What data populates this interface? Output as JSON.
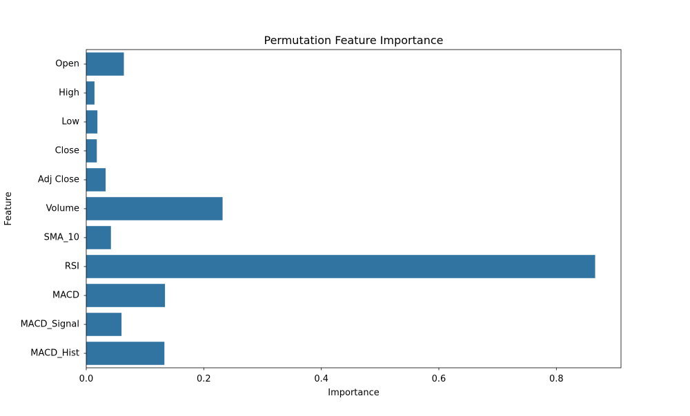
{
  "chart_data": {
    "type": "bar",
    "orientation": "horizontal",
    "title": "Permutation Feature Importance",
    "xlabel": "Importance",
    "ylabel": "Feature",
    "categories": [
      "Open",
      "High",
      "Low",
      "Close",
      "Adj Close",
      "Volume",
      "SMA_10",
      "RSI",
      "MACD",
      "MACD_Signal",
      "MACD_Hist"
    ],
    "values": [
      0.064,
      0.014,
      0.019,
      0.018,
      0.033,
      0.232,
      0.042,
      0.866,
      0.134,
      0.06,
      0.133
    ],
    "xlim": [
      0,
      0.91
    ],
    "xticks": [
      0.0,
      0.2,
      0.4,
      0.6,
      0.8
    ],
    "xtick_labels": [
      "0.0",
      "0.2",
      "0.4",
      "0.6",
      "0.8"
    ],
    "bar_color": "#3274a1",
    "grid": false,
    "legend": false
  }
}
